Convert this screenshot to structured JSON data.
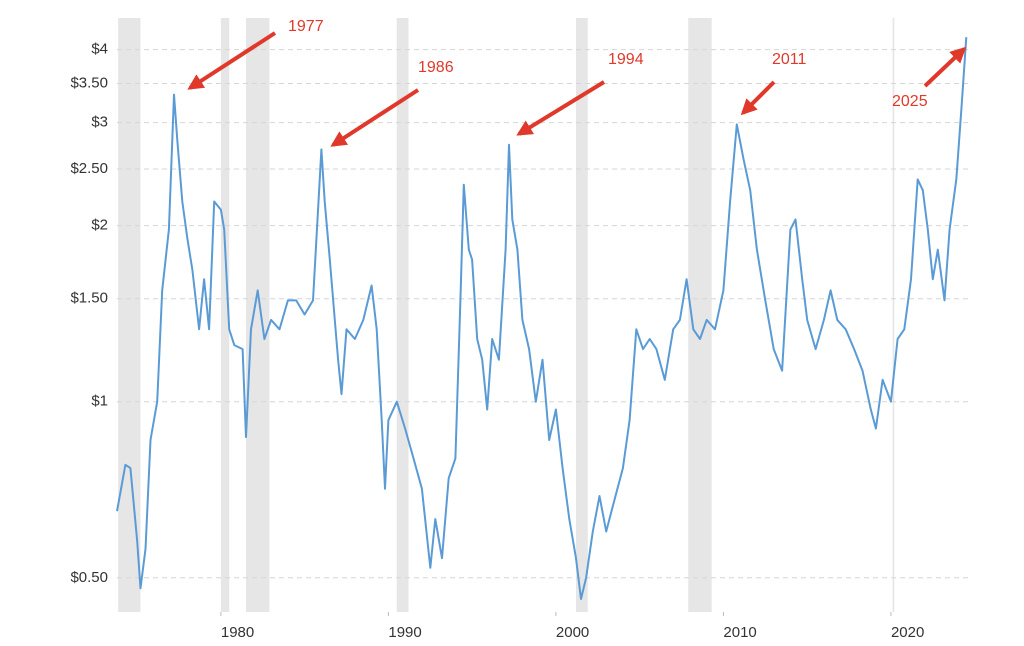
{
  "chart_data": {
    "type": "line",
    "log_scale_y": true,
    "grid": true,
    "color": "#5b9bd5",
    "shade_color": "#e6e6e6",
    "annotation_color": "#e0392b",
    "xlim": [
      1973.8,
      2024.6
    ],
    "ylim": [
      0.437,
      4.53
    ],
    "xticks": [
      1980,
      1990,
      2000,
      2010,
      2020
    ],
    "yticks": [
      {
        "value": 0.5,
        "label": "$0.50"
      },
      {
        "value": 1,
        "label": "$1"
      },
      {
        "value": 1.5,
        "label": "$1.50"
      },
      {
        "value": 2,
        "label": "$2"
      },
      {
        "value": 2.5,
        "label": "$2.50"
      },
      {
        "value": 3,
        "label": "$3"
      },
      {
        "value": 3.5,
        "label": "$3.50"
      },
      {
        "value": 4,
        "label": "$4"
      }
    ],
    "recessions": [
      [
        1973.87,
        1975.2
      ],
      [
        1980.0,
        1980.5
      ],
      [
        1981.5,
        1982.9
      ],
      [
        1990.5,
        1991.2
      ],
      [
        2001.2,
        2001.9
      ],
      [
        2007.9,
        2009.3
      ],
      [
        2020.1,
        2020.2
      ]
    ],
    "annotations": [
      "1977",
      "1986",
      "1994",
      "2011",
      "2025"
    ],
    "x": [
      1973.8,
      1974.3,
      1974.6,
      1975.0,
      1975.2,
      1975.5,
      1975.8,
      1976.2,
      1976.5,
      1976.9,
      1977.2,
      1977.4,
      1977.7,
      1978.0,
      1978.3,
      1978.7,
      1979.0,
      1979.3,
      1979.6,
      1980.0,
      1980.2,
      1980.5,
      1980.8,
      1981.3,
      1981.5,
      1981.8,
      1982.2,
      1982.6,
      1983.0,
      1983.5,
      1984.0,
      1984.5,
      1985.0,
      1985.5,
      1986.0,
      1986.2,
      1986.5,
      1986.8,
      1987.0,
      1987.2,
      1987.5,
      1988.0,
      1988.5,
      1989.0,
      1989.3,
      1989.6,
      1989.8,
      1990.0,
      1990.5,
      1991.0,
      1991.5,
      1992.0,
      1992.5,
      1992.8,
      1993.2,
      1993.6,
      1994.0,
      1994.3,
      1994.5,
      1994.8,
      1995.0,
      1995.3,
      1995.6,
      1995.9,
      1996.2,
      1996.6,
      1997.0,
      1997.2,
      1997.4,
      1997.7,
      1998.0,
      1998.4,
      1998.8,
      1999.2,
      1999.6,
      2000.0,
      2000.4,
      2000.8,
      2001.2,
      2001.5,
      2001.8,
      2002.2,
      2002.6,
      2003.0,
      2003.5,
      2004.0,
      2004.4,
      2004.8,
      2005.2,
      2005.6,
      2006.0,
      2006.5,
      2007.0,
      2007.4,
      2007.8,
      2008.2,
      2008.6,
      2009.0,
      2009.5,
      2010.0,
      2010.4,
      2010.8,
      2011.2,
      2011.6,
      2012.0,
      2012.5,
      2013.0,
      2013.5,
      2014.0,
      2014.3,
      2014.7,
      2015.0,
      2015.5,
      2016.0,
      2016.4,
      2016.8,
      2017.3,
      2017.8,
      2018.3,
      2018.8,
      2019.1,
      2019.5,
      2020.0,
      2020.4,
      2020.8,
      2021.2,
      2021.6,
      2021.9,
      2022.2,
      2022.5,
      2022.8,
      2023.2,
      2023.5,
      2023.9,
      2024.2,
      2024.5
    ],
    "values": [
      0.65,
      0.78,
      0.77,
      0.58,
      0.48,
      0.56,
      0.86,
      1.0,
      1.55,
      1.97,
      3.35,
      2.8,
      2.2,
      1.9,
      1.68,
      1.33,
      1.62,
      1.33,
      2.2,
      2.13,
      1.97,
      1.33,
      1.25,
      1.23,
      0.87,
      1.33,
      1.55,
      1.28,
      1.38,
      1.33,
      1.49,
      1.49,
      1.41,
      1.49,
      2.7,
      2.2,
      1.75,
      1.38,
      1.18,
      1.03,
      1.33,
      1.28,
      1.38,
      1.58,
      1.33,
      0.93,
      0.71,
      0.93,
      1.0,
      0.9,
      0.8,
      0.71,
      0.52,
      0.63,
      0.54,
      0.74,
      0.8,
      1.49,
      2.35,
      1.82,
      1.75,
      1.28,
      1.18,
      0.97,
      1.28,
      1.18,
      1.82,
      2.75,
      2.05,
      1.82,
      1.38,
      1.23,
      1.0,
      1.18,
      0.86,
      0.97,
      0.77,
      0.63,
      0.54,
      0.46,
      0.5,
      0.6,
      0.69,
      0.6,
      0.68,
      0.77,
      0.93,
      1.33,
      1.23,
      1.28,
      1.23,
      1.09,
      1.33,
      1.38,
      1.62,
      1.33,
      1.28,
      1.38,
      1.33,
      1.55,
      2.2,
      2.98,
      2.6,
      2.3,
      1.82,
      1.49,
      1.23,
      1.13,
      1.97,
      2.05,
      1.62,
      1.38,
      1.23,
      1.38,
      1.55,
      1.38,
      1.33,
      1.23,
      1.13,
      0.97,
      0.9,
      1.09,
      1.0,
      1.28,
      1.33,
      1.62,
      2.4,
      2.3,
      1.97,
      1.62,
      1.82,
      1.49,
      1.97,
      2.4,
      3.15,
      4.2
    ]
  }
}
